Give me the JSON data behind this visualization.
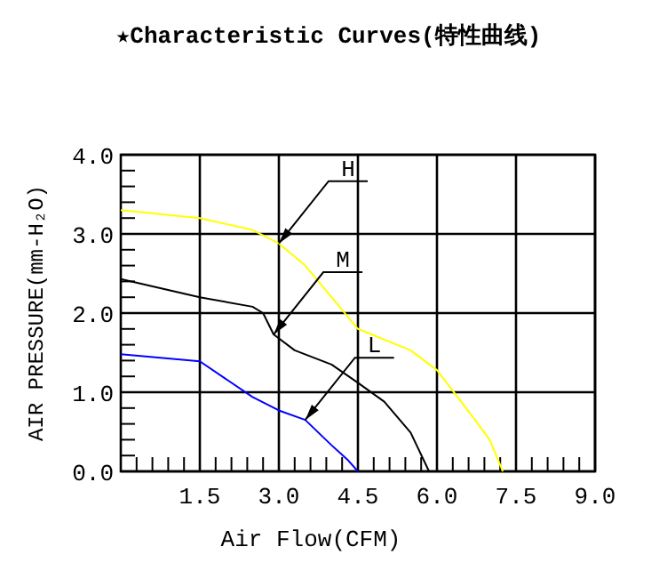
{
  "chart_data": {
    "type": "line",
    "title": "★Characteristic Curves(特性曲线)",
    "xlabel": "Air Flow(CFM)",
    "ylabel": "AIR PRESSURE(mm-H₂O)",
    "xlim": [
      0,
      9
    ],
    "ylim": [
      0,
      4
    ],
    "xticks": [
      {
        "value": 0.3,
        "label": null
      },
      {
        "value": 0.6,
        "label": null
      },
      {
        "value": 0.9,
        "label": null
      },
      {
        "value": 1.2,
        "label": null
      },
      {
        "value": 1.5,
        "label": "1.5"
      },
      {
        "value": 1.8,
        "label": null
      },
      {
        "value": 2.1,
        "label": null
      },
      {
        "value": 2.4,
        "label": null
      },
      {
        "value": 2.7,
        "label": null
      },
      {
        "value": 3,
        "label": "3.0"
      },
      {
        "value": 3.3,
        "label": null
      },
      {
        "value": 3.6,
        "label": null
      },
      {
        "value": 3.9,
        "label": null
      },
      {
        "value": 4.2,
        "label": null
      },
      {
        "value": 4.5,
        "label": "4.5"
      },
      {
        "value": 4.8,
        "label": null
      },
      {
        "value": 5.1,
        "label": null
      },
      {
        "value": 5.4,
        "label": null
      },
      {
        "value": 5.7,
        "label": null
      },
      {
        "value": 6,
        "label": "6.0"
      },
      {
        "value": 6.3,
        "label": null
      },
      {
        "value": 6.6,
        "label": null
      },
      {
        "value": 6.9,
        "label": null
      },
      {
        "value": 7.2,
        "label": null
      },
      {
        "value": 7.5,
        "label": "7.5"
      },
      {
        "value": 7.8,
        "label": null
      },
      {
        "value": 8.1,
        "label": null
      },
      {
        "value": 8.4,
        "label": null
      },
      {
        "value": 8.7,
        "label": null
      },
      {
        "value": 9,
        "label": "9.0"
      }
    ],
    "yticks": [
      {
        "value": 0,
        "label": "0.0"
      },
      {
        "value": 0.2,
        "label": null
      },
      {
        "value": 0.4,
        "label": null
      },
      {
        "value": 0.6,
        "label": null
      },
      {
        "value": 0.8,
        "label": null
      },
      {
        "value": 1,
        "label": "1.0"
      },
      {
        "value": 1.2,
        "label": null
      },
      {
        "value": 1.4,
        "label": null
      },
      {
        "value": 1.6,
        "label": null
      },
      {
        "value": 1.8,
        "label": null
      },
      {
        "value": 2,
        "label": "2.0"
      },
      {
        "value": 2.2,
        "label": null
      },
      {
        "value": 2.4,
        "label": null
      },
      {
        "value": 2.6,
        "label": null
      },
      {
        "value": 2.8,
        "label": null
      },
      {
        "value": 3,
        "label": "3.0"
      },
      {
        "value": 3.2,
        "label": null
      },
      {
        "value": 3.4,
        "label": null
      },
      {
        "value": 3.6,
        "label": null
      },
      {
        "value": 3.8,
        "label": null
      },
      {
        "value": 4,
        "label": "4.0"
      }
    ],
    "grid": true,
    "marker": "none",
    "line_style": "solid",
    "series": [
      {
        "name": "H",
        "color": "#ffff00",
        "x": [
          0,
          1.5,
          2.5,
          3,
          3.5,
          4,
          4.5,
          5.5,
          6,
          6.7,
          7,
          7.25
        ],
        "values": [
          3.3,
          3.2,
          3.05,
          2.88,
          2.6,
          2.2,
          1.8,
          1.53,
          1.28,
          0.67,
          0.4,
          0
        ]
      },
      {
        "name": "M",
        "color": "#000000",
        "x": [
          0,
          1.5,
          2.5,
          2.7,
          2.9,
          3.3,
          4,
          4.5,
          5,
          5.5,
          5.85
        ],
        "values": [
          2.43,
          2.2,
          2.08,
          2.0,
          1.73,
          1.53,
          1.35,
          1.12,
          0.88,
          0.49,
          0
        ]
      },
      {
        "name": "L",
        "color": "#0000ff",
        "x": [
          0,
          1.5,
          2.5,
          3,
          3.5,
          4,
          4.3,
          4.5
        ],
        "values": [
          1.48,
          1.39,
          0.94,
          0.77,
          0.65,
          0.33,
          0.15,
          0
        ]
      }
    ]
  }
}
